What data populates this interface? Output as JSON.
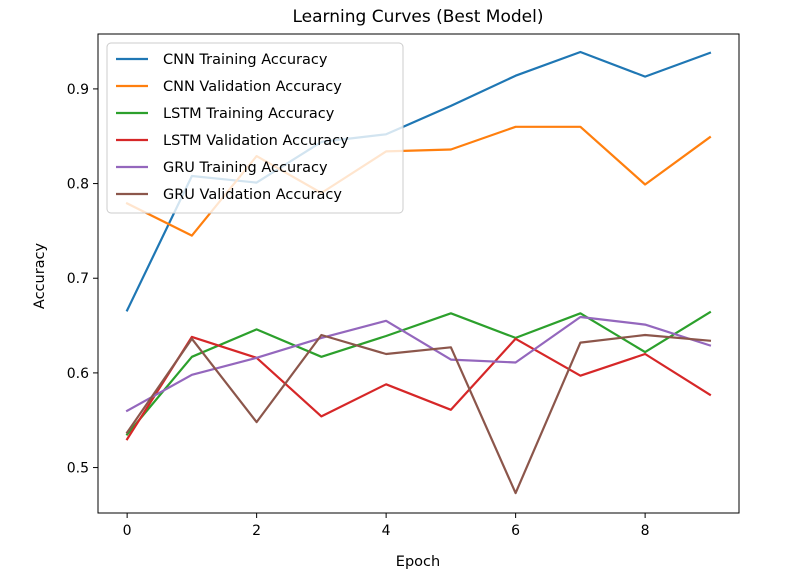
{
  "chart_data": {
    "type": "line",
    "title": "Learning Curves (Best Model)",
    "xlabel": "Epoch",
    "ylabel": "Accuracy",
    "xlim": [
      -0.45,
      9.45
    ],
    "ylim": [
      0.452,
      0.958
    ],
    "xticks": [
      0,
      2,
      4,
      6,
      8
    ],
    "yticks": [
      0.5,
      0.6,
      0.7,
      0.8,
      0.9
    ],
    "grid": false,
    "legend": "upper-left",
    "x": [
      0,
      1,
      2,
      3,
      4,
      5,
      6,
      7,
      8,
      9
    ],
    "series": [
      {
        "name": "CNN Training Accuracy",
        "color": "#1f77b4",
        "values": [
          0.666,
          0.808,
          0.801,
          0.844,
          0.852,
          0.882,
          0.914,
          0.939,
          0.913,
          0.938
        ]
      },
      {
        "name": "CNN Validation Accuracy",
        "color": "#ff7f0e",
        "values": [
          0.779,
          0.745,
          0.829,
          0.79,
          0.834,
          0.836,
          0.86,
          0.86,
          0.799,
          0.849
        ]
      },
      {
        "name": "LSTM Training Accuracy",
        "color": "#2ca02c",
        "values": [
          0.535,
          0.617,
          0.646,
          0.617,
          0.639,
          0.663,
          0.637,
          0.663,
          0.622,
          0.664
        ]
      },
      {
        "name": "LSTM Validation Accuracy",
        "color": "#d62728",
        "values": [
          0.53,
          0.638,
          0.616,
          0.554,
          0.588,
          0.561,
          0.636,
          0.597,
          0.62,
          0.577
        ]
      },
      {
        "name": "GRU Training Accuracy",
        "color": "#9467bd",
        "values": [
          0.56,
          0.598,
          0.616,
          0.637,
          0.655,
          0.614,
          0.611,
          0.659,
          0.651,
          0.629
        ]
      },
      {
        "name": "GRU Validation Accuracy",
        "color": "#8c564b",
        "values": [
          0.537,
          0.636,
          0.548,
          0.64,
          0.62,
          0.627,
          0.473,
          0.632,
          0.64,
          0.634
        ]
      }
    ]
  }
}
